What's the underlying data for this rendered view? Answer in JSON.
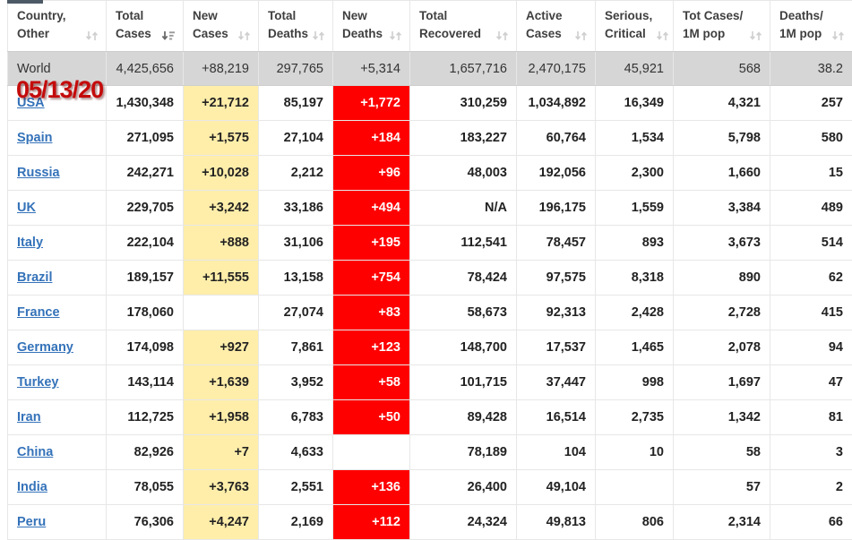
{
  "page": {
    "date_stamp": "05/13/20"
  },
  "colors": {
    "new_cases_bg": "#FFEEAA",
    "new_deaths_bg": "#FF0000",
    "world_row_bg": "#D6D6D6",
    "country_link": "#3472B9",
    "date_stamp": "#C40B0B"
  },
  "table": {
    "columns": [
      {
        "key": "country",
        "label": "Country,\nOther",
        "sort": "none"
      },
      {
        "key": "total_cases",
        "label": "Total\nCases",
        "sort": "desc"
      },
      {
        "key": "new_cases",
        "label": "New\nCases",
        "sort": "none"
      },
      {
        "key": "total_deaths",
        "label": "Total\nDeaths",
        "sort": "none"
      },
      {
        "key": "new_deaths",
        "label": "New\nDeaths",
        "sort": "none"
      },
      {
        "key": "total_recovered",
        "label": "Total\nRecovered",
        "sort": "none"
      },
      {
        "key": "active_cases",
        "label": "Active\nCases",
        "sort": "none"
      },
      {
        "key": "serious_critical",
        "label": "Serious,\nCritical",
        "sort": "none"
      },
      {
        "key": "cases_1m",
        "label": "Tot Cases/\n1M pop",
        "sort": "none"
      },
      {
        "key": "deaths_1m",
        "label": "Deaths/\n1M pop",
        "sort": "none"
      }
    ],
    "world_row": {
      "country": "World",
      "total_cases": "4,425,656",
      "new_cases": "+88,219",
      "total_deaths": "297,765",
      "new_deaths": "+5,314",
      "total_recovered": "1,657,716",
      "active_cases": "2,470,175",
      "serious_critical": "45,921",
      "cases_1m": "568",
      "deaths_1m": "38.2"
    },
    "rows": [
      {
        "country": "USA",
        "total_cases": "1,430,348",
        "new_cases": "+21,712",
        "total_deaths": "85,197",
        "new_deaths": "+1,772",
        "total_recovered": "310,259",
        "active_cases": "1,034,892",
        "serious_critical": "16,349",
        "cases_1m": "4,321",
        "deaths_1m": "257"
      },
      {
        "country": "Spain",
        "total_cases": "271,095",
        "new_cases": "+1,575",
        "total_deaths": "27,104",
        "new_deaths": "+184",
        "total_recovered": "183,227",
        "active_cases": "60,764",
        "serious_critical": "1,534",
        "cases_1m": "5,798",
        "deaths_1m": "580"
      },
      {
        "country": "Russia",
        "total_cases": "242,271",
        "new_cases": "+10,028",
        "total_deaths": "2,212",
        "new_deaths": "+96",
        "total_recovered": "48,003",
        "active_cases": "192,056",
        "serious_critical": "2,300",
        "cases_1m": "1,660",
        "deaths_1m": "15"
      },
      {
        "country": "UK",
        "total_cases": "229,705",
        "new_cases": "+3,242",
        "total_deaths": "33,186",
        "new_deaths": "+494",
        "total_recovered": "N/A",
        "active_cases": "196,175",
        "serious_critical": "1,559",
        "cases_1m": "3,384",
        "deaths_1m": "489"
      },
      {
        "country": "Italy",
        "total_cases": "222,104",
        "new_cases": "+888",
        "total_deaths": "31,106",
        "new_deaths": "+195",
        "total_recovered": "112,541",
        "active_cases": "78,457",
        "serious_critical": "893",
        "cases_1m": "3,673",
        "deaths_1m": "514"
      },
      {
        "country": "Brazil",
        "total_cases": "189,157",
        "new_cases": "+11,555",
        "total_deaths": "13,158",
        "new_deaths": "+754",
        "total_recovered": "78,424",
        "active_cases": "97,575",
        "serious_critical": "8,318",
        "cases_1m": "890",
        "deaths_1m": "62"
      },
      {
        "country": "France",
        "total_cases": "178,060",
        "new_cases": "",
        "total_deaths": "27,074",
        "new_deaths": "+83",
        "total_recovered": "58,673",
        "active_cases": "92,313",
        "serious_critical": "2,428",
        "cases_1m": "2,728",
        "deaths_1m": "415"
      },
      {
        "country": "Germany",
        "total_cases": "174,098",
        "new_cases": "+927",
        "total_deaths": "7,861",
        "new_deaths": "+123",
        "total_recovered": "148,700",
        "active_cases": "17,537",
        "serious_critical": "1,465",
        "cases_1m": "2,078",
        "deaths_1m": "94"
      },
      {
        "country": "Turkey",
        "total_cases": "143,114",
        "new_cases": "+1,639",
        "total_deaths": "3,952",
        "new_deaths": "+58",
        "total_recovered": "101,715",
        "active_cases": "37,447",
        "serious_critical": "998",
        "cases_1m": "1,697",
        "deaths_1m": "47"
      },
      {
        "country": "Iran",
        "total_cases": "112,725",
        "new_cases": "+1,958",
        "total_deaths": "6,783",
        "new_deaths": "+50",
        "total_recovered": "89,428",
        "active_cases": "16,514",
        "serious_critical": "2,735",
        "cases_1m": "1,342",
        "deaths_1m": "81"
      },
      {
        "country": "China",
        "total_cases": "82,926",
        "new_cases": "+7",
        "total_deaths": "4,633",
        "new_deaths": "",
        "total_recovered": "78,189",
        "active_cases": "104",
        "serious_critical": "10",
        "cases_1m": "58",
        "deaths_1m": "3"
      },
      {
        "country": "India",
        "total_cases": "78,055",
        "new_cases": "+3,763",
        "total_deaths": "2,551",
        "new_deaths": "+136",
        "total_recovered": "26,400",
        "active_cases": "49,104",
        "serious_critical": "",
        "cases_1m": "57",
        "deaths_1m": "2"
      },
      {
        "country": "Peru",
        "total_cases": "76,306",
        "new_cases": "+4,247",
        "total_deaths": "2,169",
        "new_deaths": "+112",
        "total_recovered": "24,324",
        "active_cases": "49,813",
        "serious_critical": "806",
        "cases_1m": "2,314",
        "deaths_1m": "66"
      }
    ]
  }
}
